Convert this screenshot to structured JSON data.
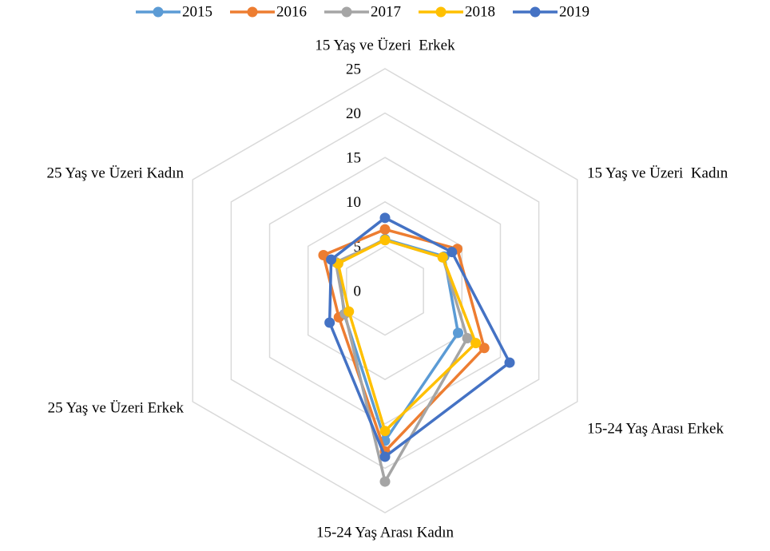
{
  "chart_data": {
    "type": "radar",
    "categories": [
      "15 Yaş ve Üzeri  Erkek",
      "15 Yaş ve Üzeri  Kadın",
      "15-24 Yaş Arası Erkek",
      "15-24 Yaş Arası Kadın",
      "25 Yaş ve Üzeri Erkek",
      "25 Yaş ve Üzeri Kadın"
    ],
    "series": [
      {
        "name": "2015",
        "color": "#5b9bd5",
        "values": [
          5.8,
          7.7,
          9.5,
          16.9,
          5.3,
          6.1
        ]
      },
      {
        "name": "2016",
        "color": "#ed7d31",
        "values": [
          6.9,
          9.4,
          12.9,
          18.1,
          6.0,
          8.0
        ]
      },
      {
        "name": "2017",
        "color": "#a5a5a5",
        "values": [
          5.7,
          7.5,
          10.7,
          21.5,
          5.2,
          6.4
        ]
      },
      {
        "name": "2018",
        "color": "#ffc000",
        "values": [
          5.7,
          7.5,
          11.8,
          15.8,
          4.7,
          6.1
        ]
      },
      {
        "name": "2019",
        "color": "#4472c4",
        "values": [
          8.2,
          8.7,
          16.2,
          18.7,
          7.2,
          7.0
        ]
      }
    ],
    "rlim": [
      0,
      25
    ],
    "rticks": [
      0,
      5,
      10,
      15,
      20,
      25
    ],
    "grid": true,
    "legend": "top"
  }
}
